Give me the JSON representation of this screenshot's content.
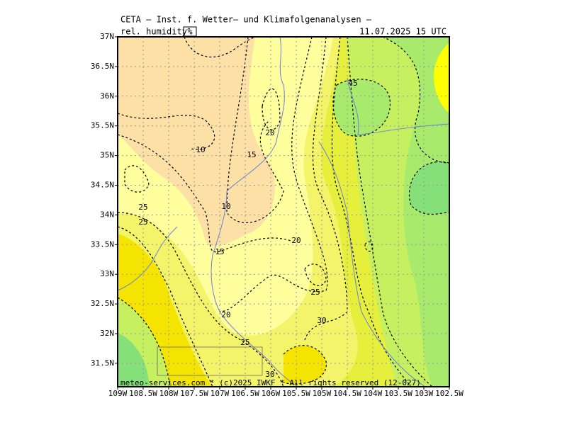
{
  "header": {
    "title": "CETA — Inst. f. Wetter— und Klimafolgenanalysen —",
    "parameter": "rel. humidity",
    "unit": "%",
    "date": "11.07.2025 15 UTC"
  },
  "map": {
    "lat_labels": [
      "37N",
      "36.5N",
      "36N",
      "35.5N",
      "35N",
      "34.5N",
      "34N",
      "33.5N",
      "33N",
      "32.5N",
      "32N",
      "31.5N"
    ],
    "lon_labels": [
      "109W",
      "108.5W",
      "108W",
      "107.5W",
      "107W",
      "106.5W",
      "106W",
      "105.5W",
      "105W",
      "104.5W",
      "104W",
      "103.5W",
      "103W",
      "102.5W"
    ],
    "contour_labels": [
      "45",
      "20",
      "10",
      "15",
      "25",
      "25",
      "10",
      "15",
      "20",
      "25",
      "30",
      "20",
      "25",
      "30"
    ],
    "footer": "meteo-services.com * (c)2025 IWKF * All rights reserved (12-027)"
  }
}
